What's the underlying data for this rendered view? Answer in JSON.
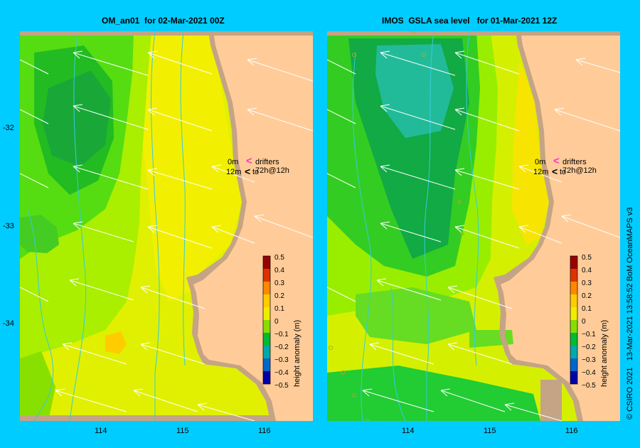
{
  "left_panel": {
    "title": "OM_an01  for 02-Mar-2021 00Z"
  },
  "right_panel": {
    "title": "IMOS  GSLA sea level   for 01-Mar-2021 12Z"
  },
  "lat_labels": [
    "-32",
    "-33",
    "-34"
  ],
  "lon_labels": [
    "114",
    "115",
    "116"
  ],
  "drifters": {
    "zero_label": "0m",
    "text": "drifters 72h@12h",
    "depth_label": "12m",
    "to_text": "to"
  },
  "colorbar": {
    "label": "height anomaly (m)",
    "ticks": [
      "0.5",
      "0.4",
      "0.3",
      "0.2",
      "0.1",
      "0",
      "−0.1",
      "−0.2",
      "−0.3",
      "−0.4",
      "−0.5"
    ]
  },
  "credit": "© CSIRO 2021   13-Mar-2021 13:58:52 BoM OceanMAPS v3",
  "colors": {
    "background": "#00ccff",
    "land": "#ffcc99",
    "coast": "#c4a484",
    "current": "#33ccdd",
    "drifter": "#ff33cc"
  }
}
